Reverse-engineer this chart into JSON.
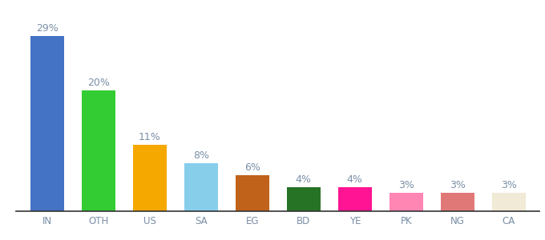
{
  "categories": [
    "IN",
    "OTH",
    "US",
    "SA",
    "EG",
    "BD",
    "YE",
    "PK",
    "NG",
    "CA"
  ],
  "values": [
    29,
    20,
    11,
    8,
    6,
    4,
    4,
    3,
    3,
    3
  ],
  "bar_colors": [
    "#4472c4",
    "#33cc33",
    "#f5a800",
    "#87ceeb",
    "#c0621a",
    "#267326",
    "#ff1493",
    "#ff85b3",
    "#e07878",
    "#f0ead6"
  ],
  "ylim": [
    0,
    33
  ],
  "background_color": "#ffffff",
  "label_fontsize": 9,
  "tick_fontsize": 8.5,
  "label_color": "#7a8fa6"
}
